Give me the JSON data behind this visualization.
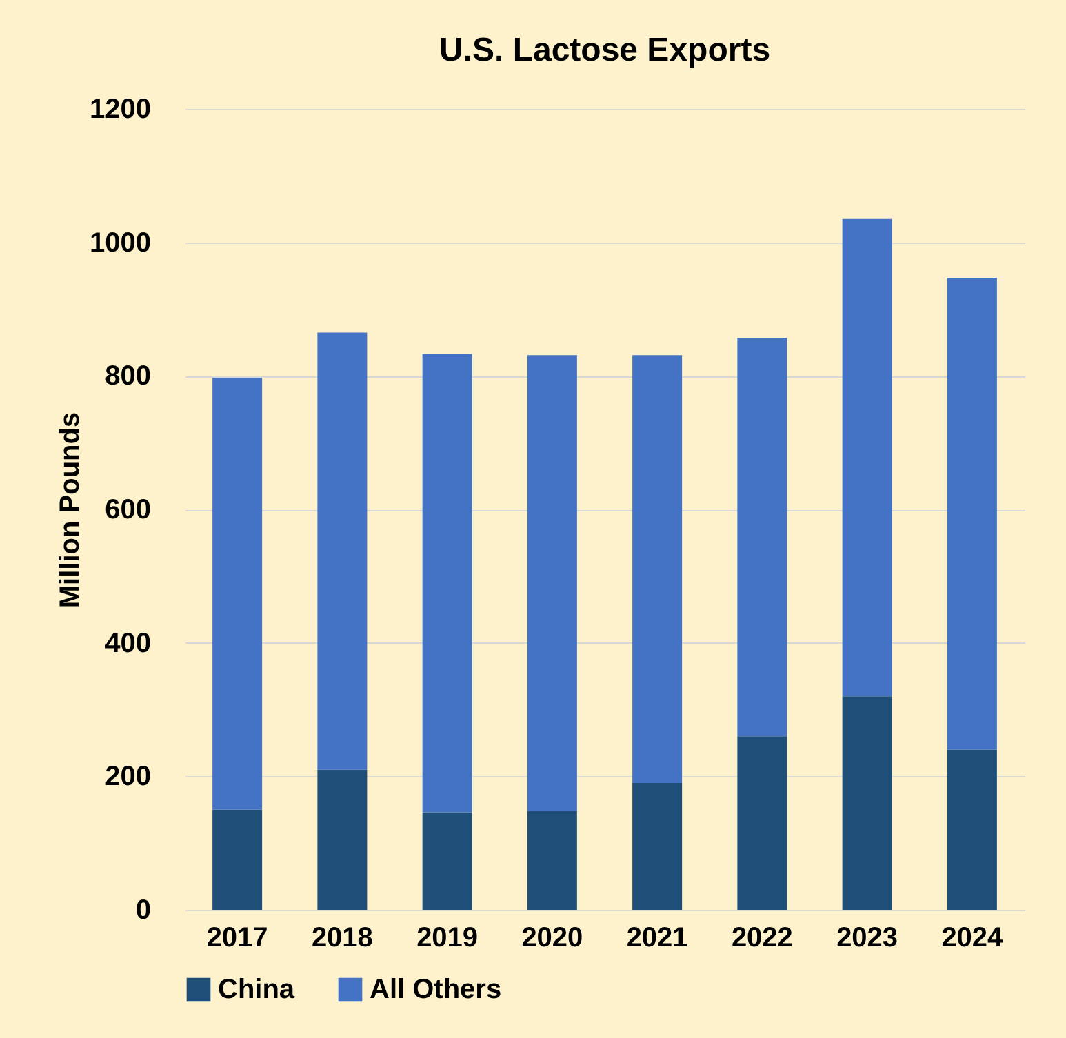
{
  "chart_data": {
    "type": "bar",
    "title": "U.S. Lactose Exports",
    "ylabel": "Million Pounds",
    "stacked": true,
    "categories": [
      "2017",
      "2018",
      "2019",
      "2020",
      "2021",
      "2022",
      "2023",
      "2024"
    ],
    "series": [
      {
        "name": "China",
        "color": "#1f4e79",
        "values": [
          150,
          210,
          146,
          148,
          190,
          260,
          320,
          240
        ]
      },
      {
        "name": "All Others",
        "color": "#4472c4",
        "values": [
          647,
          655,
          687,
          683,
          641,
          597,
          715,
          707
        ]
      }
    ],
    "ylim": [
      0,
      1200
    ],
    "yticks": [
      0,
      200,
      400,
      600,
      800,
      1000,
      1200
    ],
    "grid": "y",
    "legend": "bottom"
  }
}
